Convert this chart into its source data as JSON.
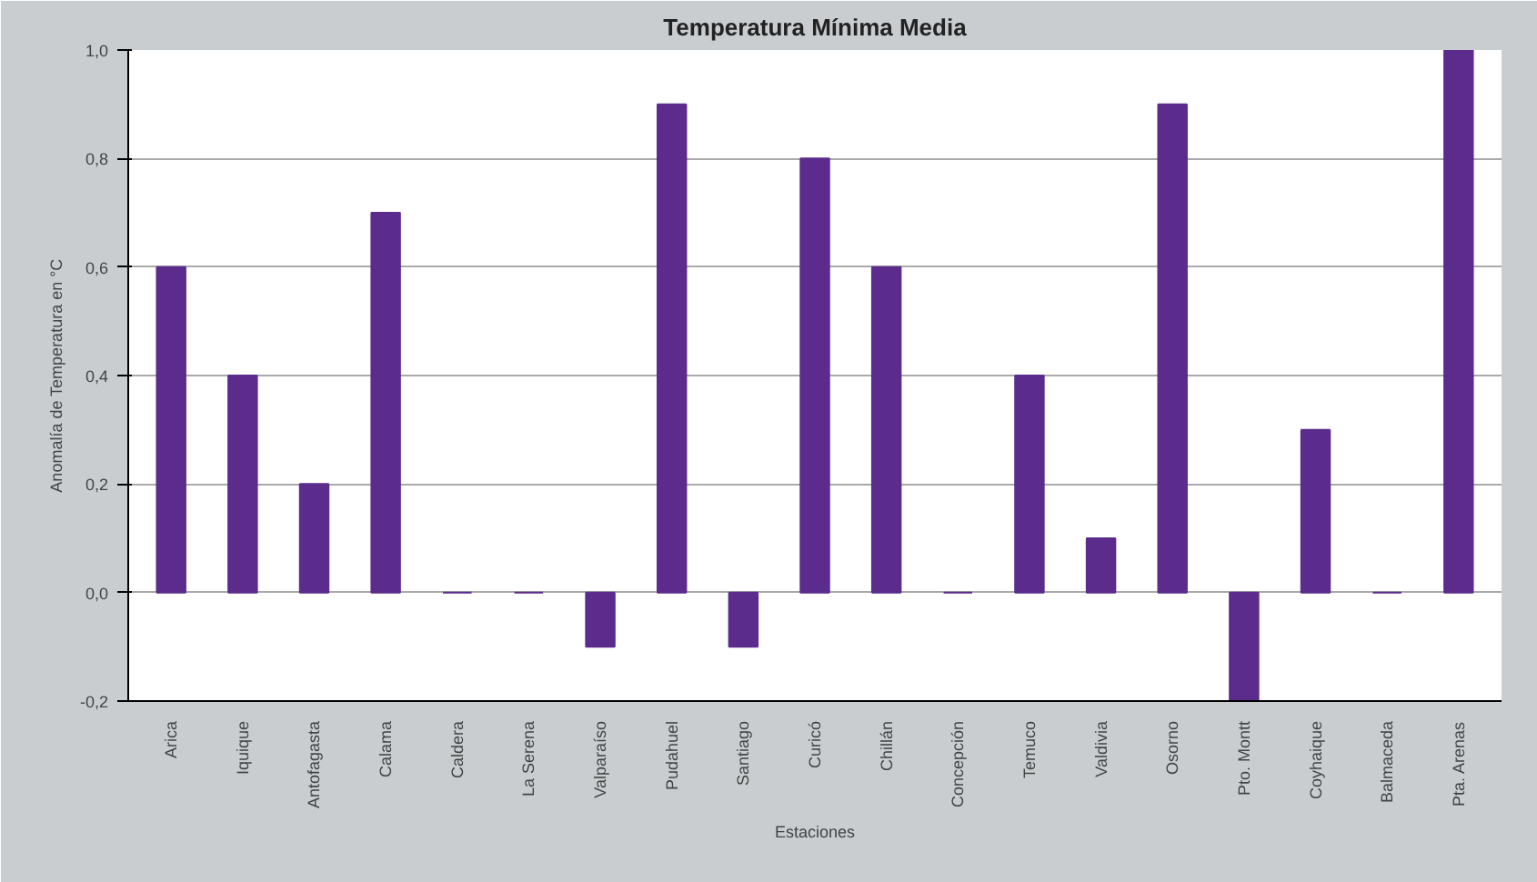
{
  "chart_data": {
    "type": "bar",
    "title": "Temperatura Mínima Media",
    "xlabel": "Estaciones",
    "ylabel": "Anomalía de Temperatura en °C",
    "categories": [
      "Arica",
      "Iquique",
      "Antofagasta",
      "Calama",
      "Caldera",
      "La Serena",
      "Valparaíso",
      "Pudahuel",
      "Santiago",
      "Curicó",
      "Chillán",
      "Concepción",
      "Temuco",
      "Valdivia",
      "Osorno",
      "Pto. Montt",
      "Coyhaique",
      "Balmaceda",
      "Pta. Arenas"
    ],
    "values": [
      0.6,
      0.4,
      0.2,
      0.7,
      0,
      0,
      -0.1,
      0.9,
      -0.1,
      0.8,
      0.6,
      0,
      0.4,
      0.1,
      0.9,
      -0.2,
      0.3,
      0,
      1.0
    ],
    "color": "#5b2c8c",
    "ylim": [
      -0.2,
      1.0
    ],
    "yticks": [
      {
        "value": -0.2,
        "label": "-0,2"
      },
      {
        "value": 0,
        "label": "0,0"
      },
      {
        "value": 0.2,
        "label": "0,2"
      },
      {
        "value": 0.4,
        "label": "0,4"
      },
      {
        "value": 0.6,
        "label": "0,6"
      },
      {
        "value": 0.8,
        "label": "0,8"
      },
      {
        "value": 1.0,
        "label": "1,0"
      }
    ],
    "grid": "y"
  }
}
